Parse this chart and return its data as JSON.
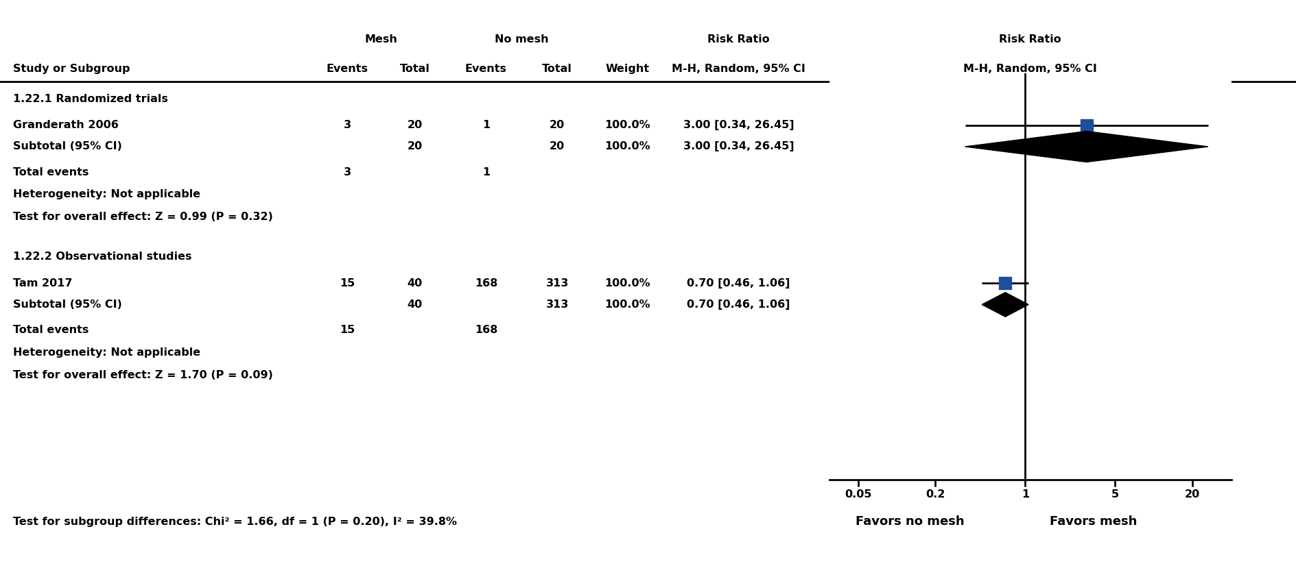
{
  "headers": {
    "mesh": "Mesh",
    "no_mesh": "No mesh",
    "risk_ratio_text": "Risk Ratio",
    "risk_ratio_method": "M-H, Random, 95% CI",
    "col_study": "Study or Subgroup",
    "col_events_m": "Events",
    "col_total_m": "Total",
    "col_events_nm": "Events",
    "col_total_nm": "Total",
    "col_weight": "Weight"
  },
  "section1_title": "1.22.1 Randomized trials",
  "section1_studies": [
    {
      "name": "Granderath 2006",
      "mesh_events": 3,
      "mesh_total": 20,
      "nm_events": 1,
      "nm_total": 20,
      "weight": "100.0%",
      "rr": 3.0,
      "ci_low": 0.34,
      "ci_high": 26.45,
      "rr_text": "3.00 [0.34, 26.45]"
    }
  ],
  "section1_subtotal": {
    "name": "Subtotal (95% CI)",
    "mesh_total": 20,
    "nm_total": 20,
    "weight": "100.0%",
    "rr": 3.0,
    "ci_low": 0.34,
    "ci_high": 26.45,
    "rr_text": "3.00 [0.34, 26.45]"
  },
  "section1_total_events": {
    "mesh": 3,
    "nm": 1
  },
  "section1_heterogeneity": "Heterogeneity: Not applicable",
  "section1_test": "Test for overall effect: Z = 0.99 (P = 0.32)",
  "section2_title": "1.22.2 Observational studies",
  "section2_studies": [
    {
      "name": "Tam 2017",
      "mesh_events": 15,
      "mesh_total": 40,
      "nm_events": 168,
      "nm_total": 313,
      "weight": "100.0%",
      "rr": 0.7,
      "ci_low": 0.46,
      "ci_high": 1.06,
      "rr_text": "0.70 [0.46, 1.06]"
    }
  ],
  "section2_subtotal": {
    "name": "Subtotal (95% CI)",
    "mesh_total": 40,
    "nm_total": 313,
    "weight": "100.0%",
    "rr": 0.7,
    "ci_low": 0.46,
    "ci_high": 1.06,
    "rr_text": "0.70 [0.46, 1.06]"
  },
  "section2_total_events": {
    "mesh": 15,
    "nm": 168
  },
  "section2_heterogeneity": "Heterogeneity: Not applicable",
  "section2_test": "Test for overall effect: Z = 1.70 (P = 0.09)",
  "footnote": "Test for subgroup differences: Chi² = 1.66, df = 1 (P = 0.20), I² = 39.8%",
  "favors_left": "Favors no mesh",
  "favors_right": "Favors mesh",
  "x_ticks": [
    0.05,
    0.2,
    1,
    5,
    20
  ],
  "x_tick_labels": [
    "0.05",
    "0.2",
    "1",
    "5",
    "20"
  ],
  "study_square_color": "#1F4E9A",
  "bg_color": "#ffffff"
}
